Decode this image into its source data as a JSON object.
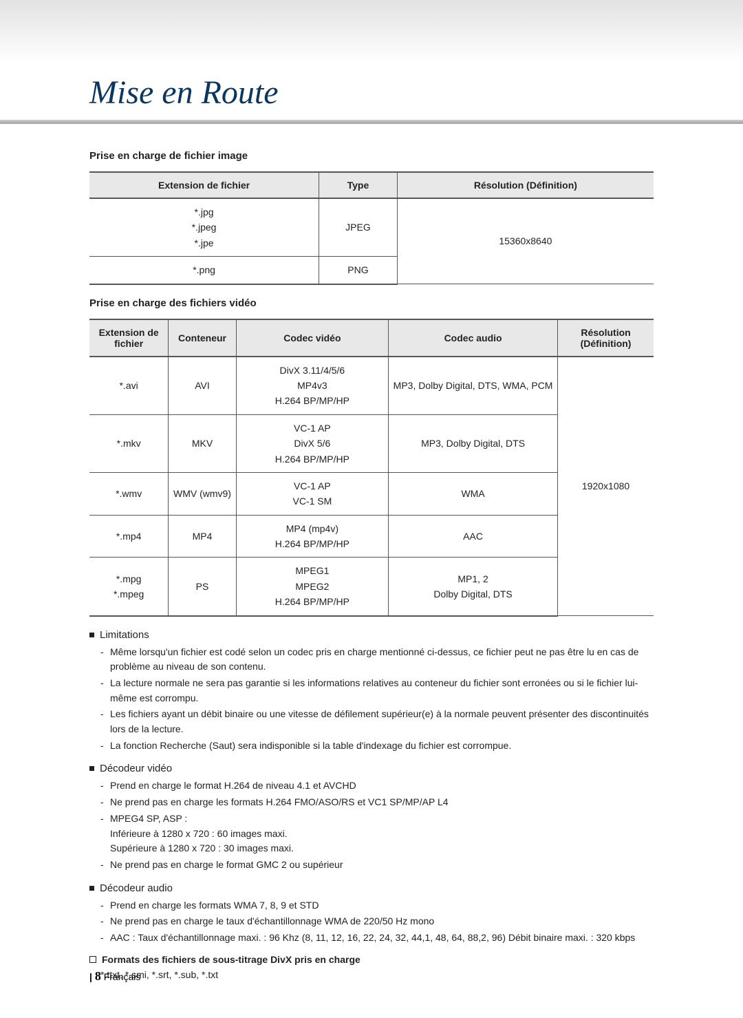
{
  "header": {
    "title": "Mise en Route"
  },
  "image_section": {
    "heading": "Prise en charge de fichier image",
    "columns": [
      "Extension de fichier",
      "Type",
      "Résolution (Définition)"
    ],
    "rows": [
      {
        "ext": "*.jpg\n*.jpeg\n*.jpe",
        "type": "JPEG",
        "res": "15360x8640",
        "res_rowspan": 2
      },
      {
        "ext": "*.png",
        "type": "PNG"
      }
    ]
  },
  "video_section": {
    "heading": "Prise en charge des fichiers vidéo",
    "columns": [
      "Extension de fichier",
      "Conteneur",
      "Codec vidéo",
      "Codec audio",
      "Résolution (Définition)"
    ],
    "rows": [
      {
        "ext": "*.avi",
        "cont": "AVI",
        "vcodec": "DivX 3.11/4/5/6\nMP4v3\nH.264 BP/MP/HP",
        "acodec": "MP3, Dolby Digital, DTS, WMA, PCM",
        "res": "1920x1080",
        "res_rowspan": 5
      },
      {
        "ext": "*.mkv",
        "cont": "MKV",
        "vcodec": "VC-1 AP\nDivX 5/6\nH.264 BP/MP/HP",
        "acodec": "MP3, Dolby Digital, DTS"
      },
      {
        "ext": "*.wmv",
        "cont": "WMV (wmv9)",
        "vcodec": "VC-1 AP\nVC-1 SM",
        "acodec": "WMA"
      },
      {
        "ext": "*.mp4",
        "cont": "MP4",
        "vcodec": "MP4 (mp4v)\nH.264 BP/MP/HP",
        "acodec": "AAC"
      },
      {
        "ext": "*.mpg\n*.mpeg",
        "cont": "PS",
        "vcodec": "MPEG1\nMPEG2\nH.264 BP/MP/HP",
        "acodec": "MP1, 2\nDolby Digital, DTS"
      }
    ]
  },
  "limitations": {
    "heading": "Limitations",
    "items": [
      "Même lorsqu'un fichier est codé selon un codec pris en charge mentionné ci-dessus, ce fichier peut ne pas être lu en cas de problème au niveau de son contenu.",
      "La lecture normale ne sera pas garantie si les informations relatives au conteneur du fichier sont erronées ou si le fichier lui-même est corrompu.",
      "Les fichiers ayant un débit binaire ou une vitesse de défilement supérieur(e) à la normale peuvent présenter des discontinuités lors de la lecture.",
      "La fonction Recherche (Saut) sera indisponible si la table d'indexage du fichier est corrompue."
    ]
  },
  "vdecoder": {
    "heading": "Décodeur vidéo",
    "items": [
      {
        "text": "Prend en charge le format H.264 de niveau 4.1 et AVCHD"
      },
      {
        "text": "Ne prend pas en charge les formats H.264 FMO/ASO/RS et VC1 SP/MP/AP L4"
      },
      {
        "text": "MPEG4 SP, ASP :",
        "sub": [
          "Inférieure à 1280 x 720 : 60 images maxi.",
          "Supérieure à 1280 x 720 : 30 images maxi."
        ]
      },
      {
        "text": "Ne prend pas en charge le format GMC 2 ou supérieur"
      }
    ]
  },
  "adecoder": {
    "heading": "Décodeur audio",
    "items": [
      "Prend en charge les formats WMA 7, 8, 9 et STD",
      "Ne prend pas en charge le taux d'échantillonnage WMA de 220/50 Hz mono",
      "AAC : Taux d'échantillonnage maxi. : 96 Khz (8, 11, 12, 16, 22, 24, 32, 44,1, 48, 64, 88,2, 96) Débit binaire maxi. : 320 kbps"
    ]
  },
  "subtitles": {
    "heading": "Formats des fichiers de sous-titrage DivX pris en charge",
    "text": "*.ttxt, *.smi, *.srt, *.sub, *.txt"
  },
  "footer": {
    "page": "8",
    "lang": "Français"
  },
  "style": {
    "header_title_color": "#0b365f",
    "table_header_bg": "#e8e8e8",
    "border_color": "#555555",
    "body_font_size": 14
  }
}
